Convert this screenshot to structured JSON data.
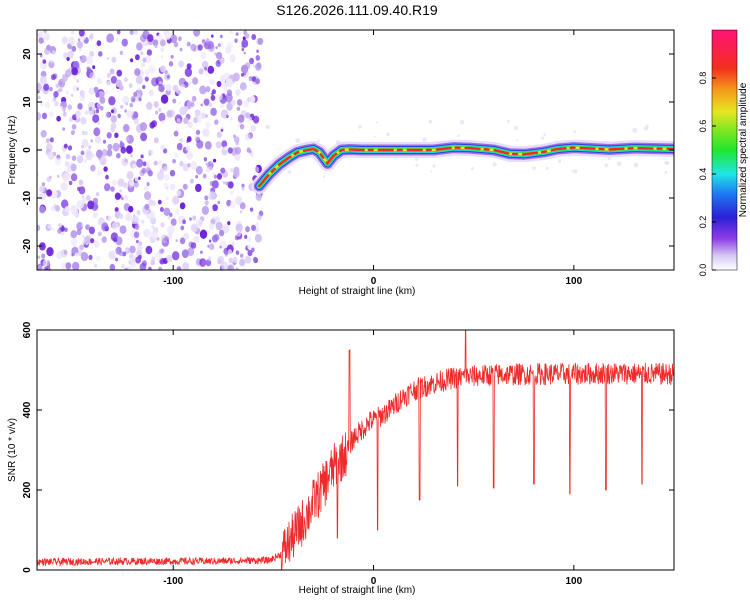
{
  "chart_data": [
    {
      "type": "heatmap",
      "title": "S126.2026.111.09.40.R19",
      "xlabel": "Height of straight line (km)",
      "ylabel": "Frequency (Hz)",
      "xlim": [
        -168,
        150
      ],
      "ylim": [
        -25,
        25
      ],
      "xticks": [
        -100,
        0,
        100
      ],
      "yticks": [
        -20,
        -10,
        0,
        10,
        20
      ],
      "noise_region_x": [
        -168,
        -56
      ],
      "ridge": {
        "x": [
          -57,
          -52,
          -47,
          -42,
          -38,
          -33,
          -30,
          -27,
          -23,
          -20,
          -16,
          -12,
          -6,
          10,
          30,
          40,
          48,
          60,
          68,
          75,
          85,
          92,
          100,
          118,
          130,
          150
        ],
        "freq": [
          -7.5,
          -5.0,
          -3.0,
          -1.5,
          -0.5,
          0.0,
          0.2,
          -0.5,
          -2.8,
          -1.2,
          0.0,
          0.1,
          0.0,
          0.0,
          0.0,
          0.5,
          0.4,
          0.0,
          -0.8,
          -0.9,
          -0.4,
          0.2,
          0.5,
          0.1,
          0.4,
          0.2
        ]
      },
      "colorbar": {
        "label": "Normalized spectral amplitude",
        "range": [
          0,
          1
        ],
        "ticks": [
          0.0,
          0.2,
          0.4,
          0.6,
          0.8
        ]
      }
    },
    {
      "type": "line",
      "xlabel": "Height of straight line (km)",
      "ylabel": "SNR (10 * v/v)",
      "xlim": [
        -168,
        150
      ],
      "ylim": [
        0,
        600
      ],
      "xticks": [
        -100,
        0,
        100
      ],
      "yticks": [
        0,
        200,
        400,
        600
      ],
      "series": [
        {
          "name": "SNR",
          "color": "#ee2a2a",
          "x": [
            -168,
            -120,
            -80,
            -60,
            -52,
            -46,
            -42,
            -38,
            -34,
            -30,
            -26,
            -22,
            -18,
            -14,
            -10,
            -6,
            -2,
            2,
            8,
            14,
            20,
            26,
            32,
            40,
            50,
            60,
            80,
            100,
            120,
            140,
            150
          ],
          "values": [
            20,
            22,
            22,
            24,
            24,
            40,
            70,
            100,
            130,
            170,
            200,
            240,
            270,
            290,
            330,
            350,
            370,
            380,
            400,
            430,
            450,
            460,
            470,
            480,
            485,
            488,
            490,
            490,
            492,
            490,
            490
          ],
          "spikes_down": [
            {
              "x": -18,
              "y": 80
            },
            {
              "x": 2,
              "y": 100
            },
            {
              "x": 23,
              "y": 175
            },
            {
              "x": 42,
              "y": 210
            },
            {
              "x": 60,
              "y": 205
            },
            {
              "x": 80,
              "y": 215
            },
            {
              "x": 98,
              "y": 190
            },
            {
              "x": 116,
              "y": 200
            },
            {
              "x": 134,
              "y": 215
            }
          ],
          "spikes_up": [
            {
              "x": -12,
              "y": 550
            },
            {
              "x": 46,
              "y": 605
            }
          ]
        }
      ]
    }
  ]
}
